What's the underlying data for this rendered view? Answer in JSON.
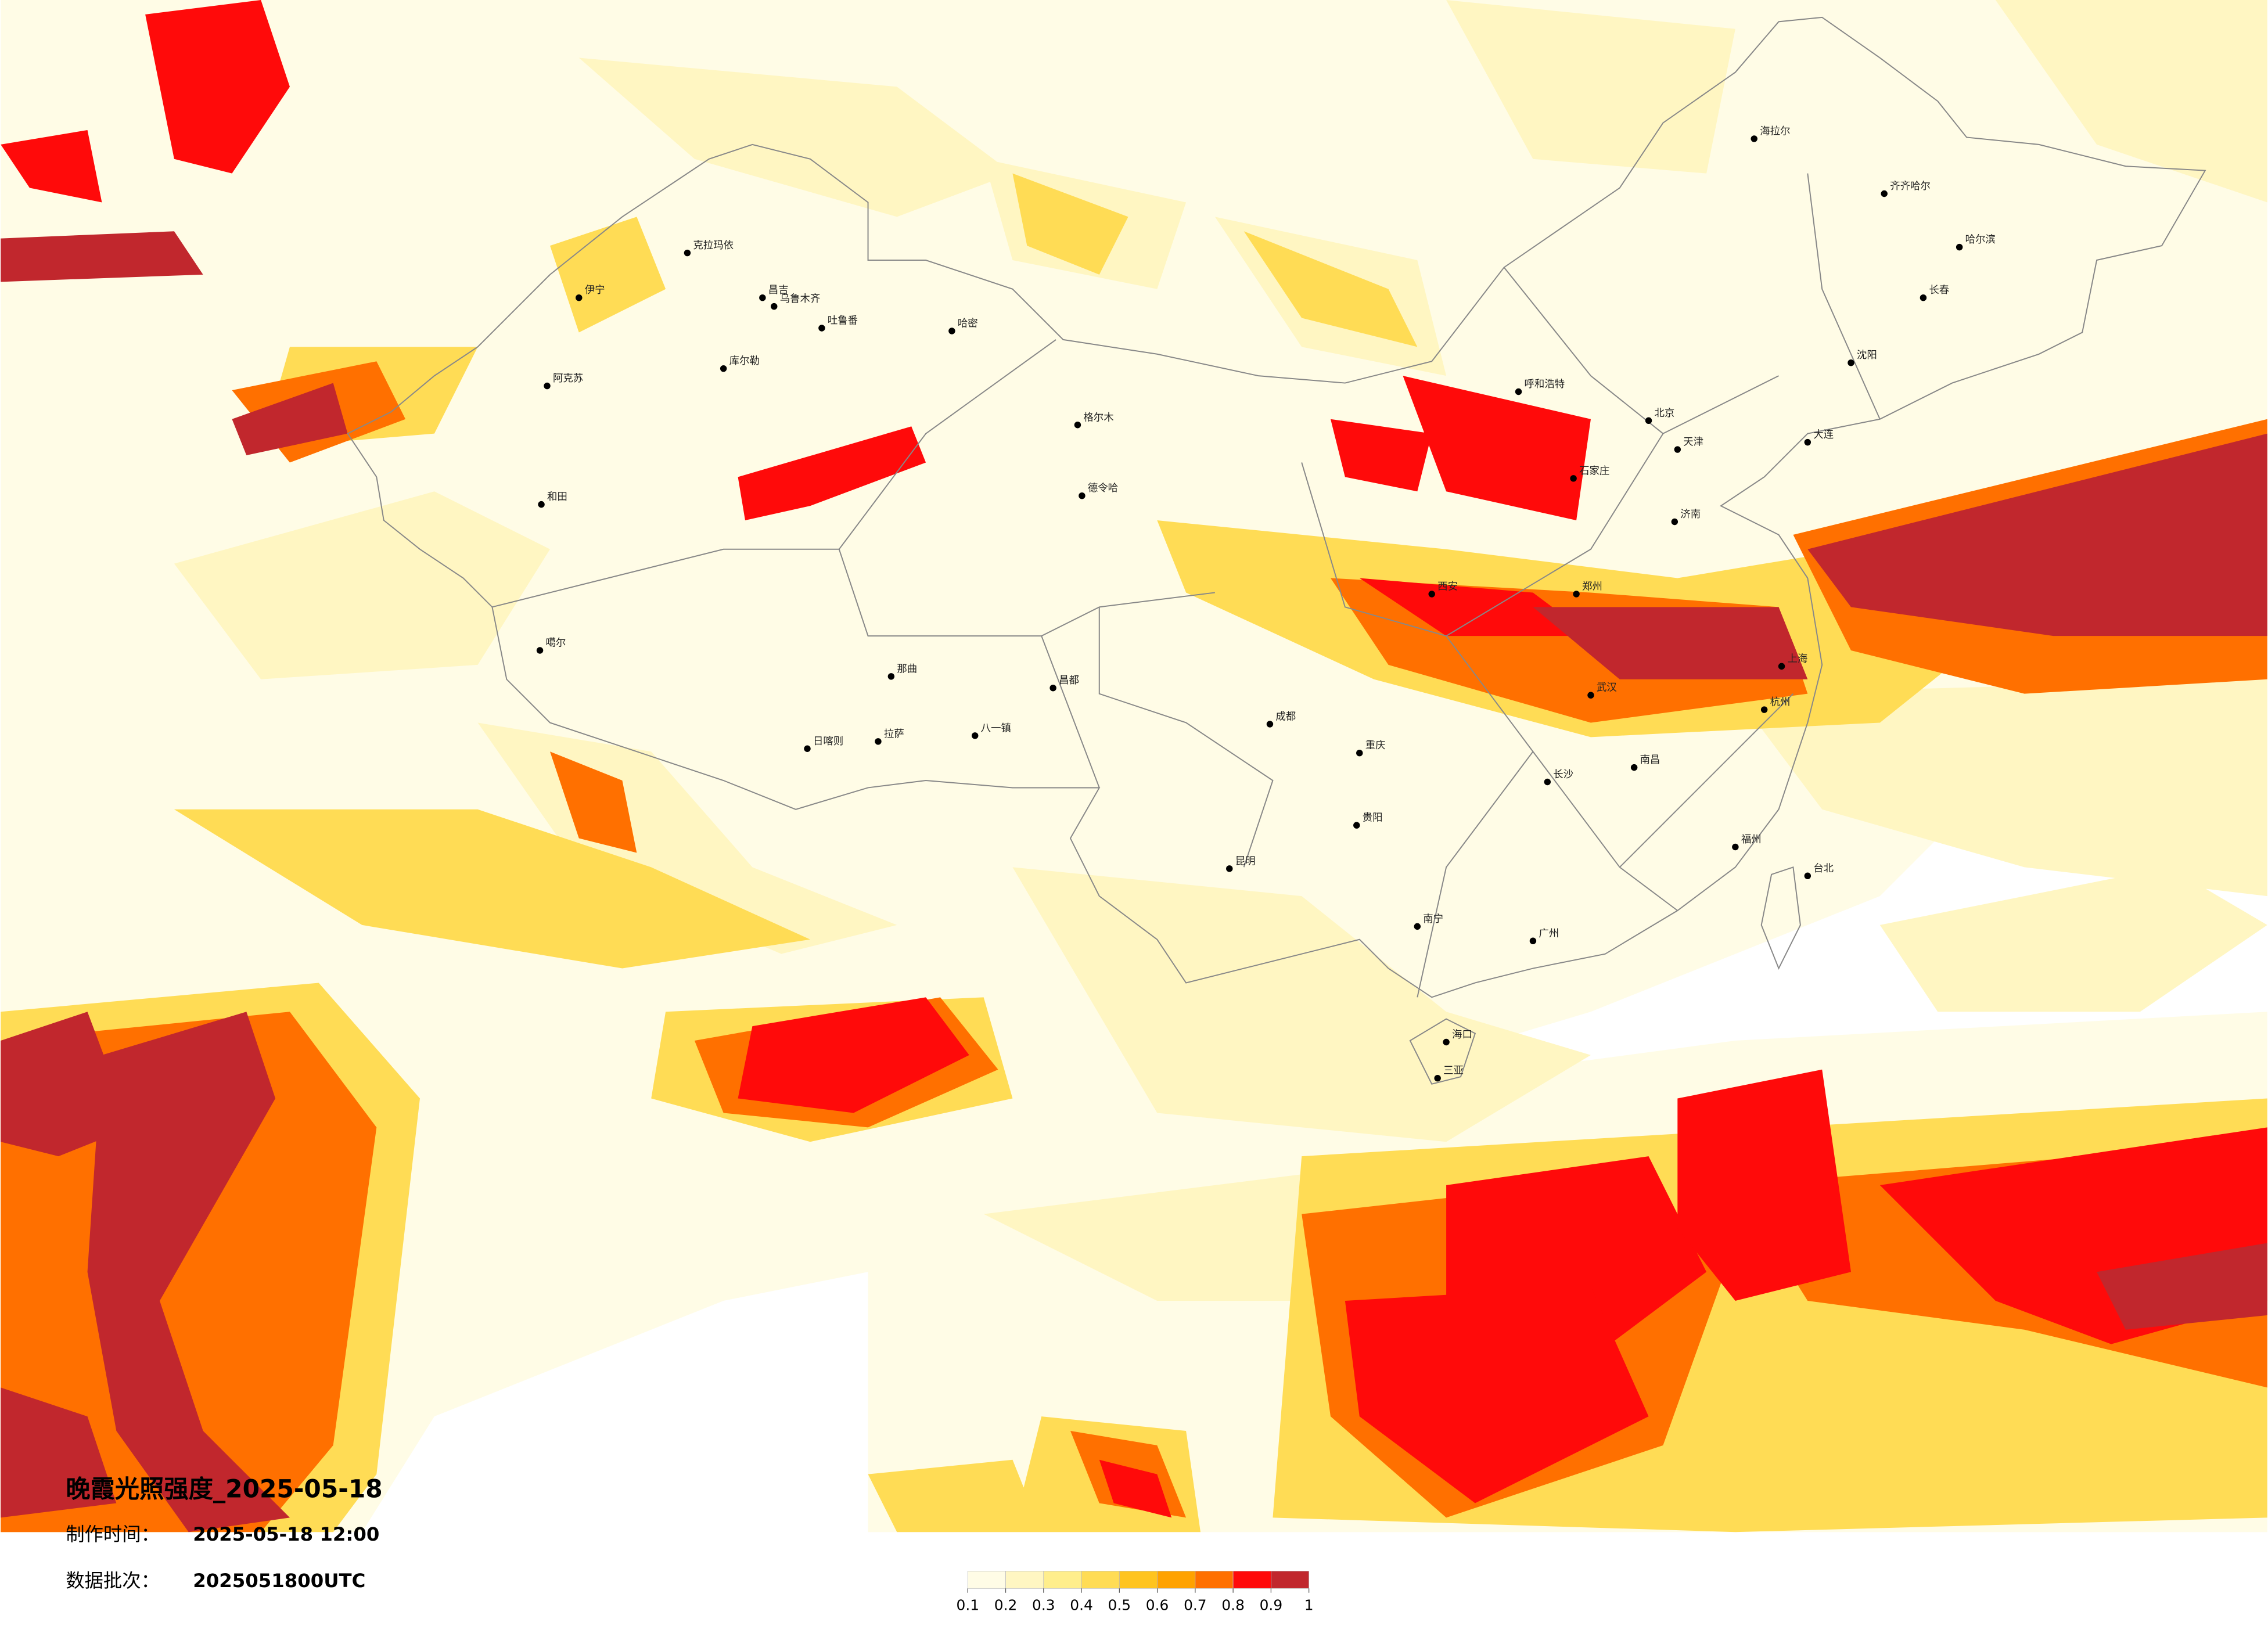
{
  "title": "晚霞光照强度_2025-05-18",
  "production_time": {
    "label": "制作时间：",
    "value": "2025-05-18 12:00"
  },
  "data_batch": {
    "label": "数据批次：",
    "value": "2025051800UTC"
  },
  "legend": {
    "ticks": [
      0.1,
      0.2,
      0.3,
      0.4,
      0.5,
      0.6,
      0.7,
      0.8,
      0.9,
      1
    ],
    "colors": [
      "#fffce6",
      "#fff6c2",
      "#ffee8c",
      "#ffdc55",
      "#ffc41f",
      "#ffa200",
      "#ff7000",
      "#ff0a0a",
      "#c1272d"
    ]
  },
  "map": {
    "cities": [
      "克拉玛依",
      "昌吉",
      "乌鲁木齐",
      "吐鲁番",
      "哈密",
      "伊宁",
      "库尔勒",
      "阿克苏",
      "和田",
      "噶尔",
      "格尔木",
      "德令哈",
      "日喀则",
      "拉萨",
      "八一镇",
      "那曲",
      "昌都",
      "呼和浩特",
      "北京",
      "天津",
      "石家庄",
      "济南",
      "郑州",
      "西安",
      "成都",
      "重庆",
      "贵阳",
      "昆明",
      "南宁",
      "广州",
      "武汉",
      "长沙",
      "南昌",
      "杭州",
      "上海",
      "福州",
      "台北",
      "哈尔滨",
      "长春",
      "沈阳",
      "大连",
      "海拉尔",
      "齐齐哈尔",
      "海口",
      "三亚"
    ]
  }
}
